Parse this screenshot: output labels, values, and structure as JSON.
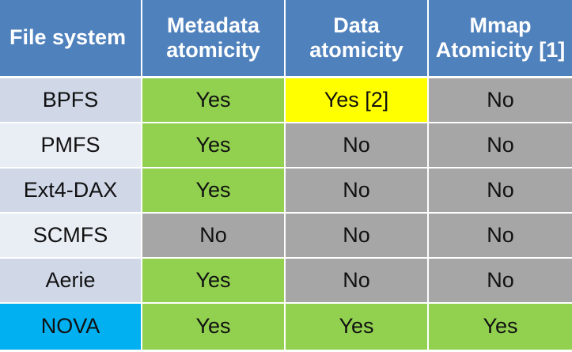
{
  "colors": {
    "header": "#4f81bd",
    "row_name_odd": "#d0d8e8",
    "row_name_even": "#e9edf4",
    "nova_highlight": "#00b0f0",
    "yes_green": "#92d050",
    "partial_yellow": "#ffff00",
    "no_gray": "#a6a6a6"
  },
  "table": {
    "headers": {
      "file_system": "File system",
      "metadata_atomicity": "Metadata atomicity",
      "data_atomicity": "Data atomicity",
      "mmap_atomicity": "Mmap Atomicity [1]"
    },
    "rows": [
      {
        "name": "BPFS",
        "metadata": "Yes",
        "data": "Yes [2]",
        "mmap": "No"
      },
      {
        "name": "PMFS",
        "metadata": "Yes",
        "data": "No",
        "mmap": "No"
      },
      {
        "name": "Ext4-DAX",
        "metadata": "Yes",
        "data": "No",
        "mmap": "No"
      },
      {
        "name": "SCMFS",
        "metadata": "No",
        "data": "No",
        "mmap": "No"
      },
      {
        "name": "Aerie",
        "metadata": "Yes",
        "data": "No",
        "mmap": "No"
      },
      {
        "name": "NOVA",
        "metadata": "Yes",
        "data": "Yes",
        "mmap": "Yes"
      }
    ]
  }
}
